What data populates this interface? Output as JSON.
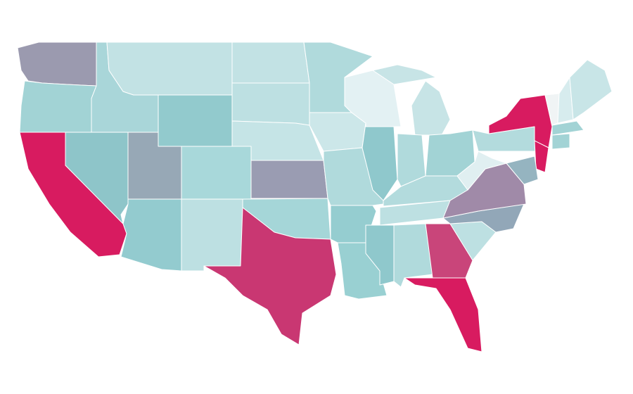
{
  "map": {
    "regions": [
      {
        "color": "#9b9aaf"
      },
      {
        "color": "#a2d3d5"
      },
      {
        "color": "#d81b60"
      },
      {
        "color": "#8ec5c9"
      },
      {
        "color": "#a9d6d9"
      },
      {
        "color": "#c2e2e4"
      },
      {
        "color": "#92cacd"
      },
      {
        "color": "#97a8b6"
      },
      {
        "color": "#a8d8da"
      },
      {
        "color": "#93cbcf"
      },
      {
        "color": "#bde0e2"
      },
      {
        "color": "#c2e2e4"
      },
      {
        "color": "#bde0e2"
      },
      {
        "color": "#c5e4e6"
      },
      {
        "color": "#9a9cb2"
      },
      {
        "color": "#a5d6d8"
      },
      {
        "color": "#c93772"
      },
      {
        "color": "#b0dadc"
      },
      {
        "color": "#cce7e9"
      },
      {
        "color": "#b0dadc"
      },
      {
        "color": "#95cdd0"
      },
      {
        "color": "#99d0d2"
      },
      {
        "color": "#e3f1f3"
      },
      {
        "color": "#8fc8cc"
      },
      {
        "color": "#c7e4e6"
      },
      {
        "color": "#c7e4e6"
      },
      {
        "color": "#b0dadc"
      },
      {
        "color": "#a2d3d5"
      },
      {
        "color": "#b3dbdd"
      },
      {
        "color": "#bde0e2"
      },
      {
        "color": "#8fc8cc"
      },
      {
        "color": "#b0dadc"
      },
      {
        "color": "#c9457a"
      },
      {
        "color": "#d81b60"
      },
      {
        "color": "#bde0e2"
      },
      {
        "color": "#92a7b8"
      },
      {
        "color": "#a08aa8"
      },
      {
        "color": "#e0eff1"
      },
      {
        "color": "#b3dbdd"
      },
      {
        "color": "#d81b60"
      },
      {
        "color": "#d81b60"
      },
      {
        "color": "#95b4c0"
      },
      {
        "color": "#f0f4f5"
      },
      {
        "color": "#d7ecee"
      },
      {
        "color": "#c8e5e7"
      },
      {
        "color": "#a2d3d5"
      },
      {
        "color": "#a2d3d5"
      }
    ]
  }
}
